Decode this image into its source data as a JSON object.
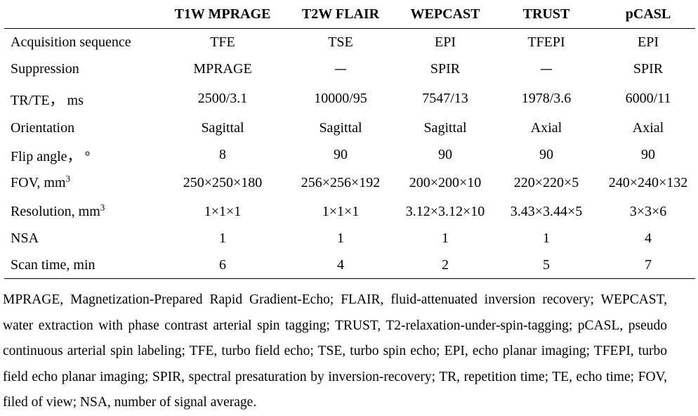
{
  "table": {
    "headers": [
      "",
      "T1W MPRAGE",
      "T2W FLAIR",
      "WEPCAST",
      "TRUST",
      "pCASL"
    ],
    "rows": [
      {
        "label": "Acquisition sequence",
        "unit": "",
        "sup": "",
        "cells": [
          "TFE",
          "TSE",
          "EPI",
          "TFEPI",
          "EPI"
        ]
      },
      {
        "label": "Suppression",
        "unit": "",
        "sup": "",
        "cells": [
          "MPRAGE",
          "—",
          "SPIR",
          "—",
          "SPIR"
        ]
      },
      {
        "label": "TR/TE， ms",
        "unit": "",
        "sup": "",
        "cells": [
          "2500/3.1",
          "10000/95",
          "7547/13",
          "1978/3.6",
          "6000/11"
        ]
      },
      {
        "label": "Orientation",
        "unit": "",
        "sup": "",
        "cells": [
          "Sagittal",
          "Sagittal",
          "Sagittal",
          "Axial",
          "Axial"
        ]
      },
      {
        "label": "Flip angle， °",
        "unit": "",
        "sup": "",
        "cells": [
          "8",
          "90",
          "90",
          "90",
          "90"
        ]
      },
      {
        "label": "FOV, mm",
        "unit": "",
        "sup": "3",
        "cells": [
          "250×250×180",
          "256×256×192",
          "200×200×10",
          "220×220×5",
          "240×240×132"
        ]
      },
      {
        "label": "Resolution, mm",
        "unit": "",
        "sup": "3",
        "cells": [
          "1×1×1",
          "1×1×1",
          "3.12×3.12×10",
          "3.43×3.44×5",
          "3×3×6"
        ]
      },
      {
        "label": "NSA",
        "unit": "",
        "sup": "",
        "cells": [
          "1",
          "1",
          "1",
          "1",
          "4"
        ]
      },
      {
        "label": "Scan time, min",
        "unit": "",
        "sup": "",
        "cells": [
          "6",
          "4",
          "2",
          "5",
          "7"
        ]
      }
    ]
  },
  "footnote": "MPRAGE, Magnetization-Prepared Rapid Gradient-Echo; FLAIR, fluid-attenuated inversion recovery; WEPCAST, water extraction with phase contrast arterial spin tagging; TRUST, T2-relaxation-under-spin-tagging; pCASL, pseudo continuous arterial spin labeling; TFE, turbo field echo; TSE, turbo spin echo; EPI, echo planar imaging; TFEPI, turbo field echo planar imaging; SPIR, spectral presaturation by inversion-recovery; TR, repetition time; TE, echo time; FOV, filed of view; NSA, number of signal average."
}
